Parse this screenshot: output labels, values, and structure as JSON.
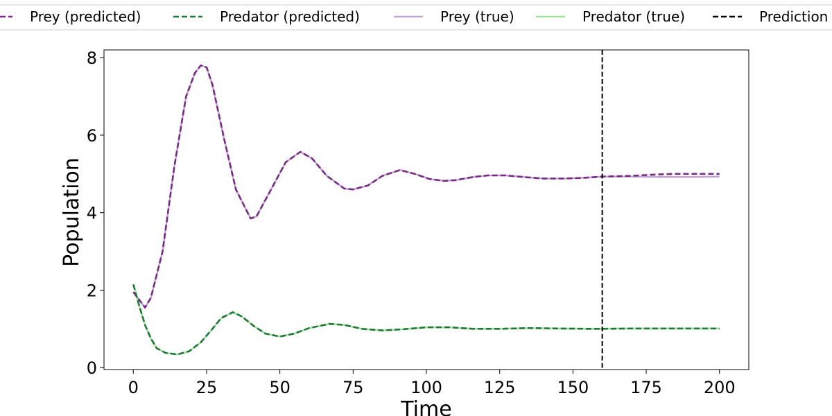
{
  "chart_data": {
    "type": "line",
    "xlabel": "Time",
    "ylabel": "Population",
    "xlim": [
      -10,
      210
    ],
    "ylim": [
      -0.05,
      8.2
    ],
    "xticks": [
      0,
      25,
      50,
      75,
      100,
      125,
      150,
      175,
      200
    ],
    "yticks": [
      0,
      2,
      4,
      6,
      8
    ],
    "grid": false,
    "legend": {
      "placement": "top",
      "entries": [
        {
          "label": "Prey (predicted)",
          "color": "#762a83",
          "style": "dashed"
        },
        {
          "label": "Predator (predicted)",
          "color": "#1b7837",
          "style": "dashed"
        },
        {
          "label": "Prey (true)",
          "color": "#c2a5cf",
          "style": "solid"
        },
        {
          "label": "Predator (true)",
          "color": "#a6dba0",
          "style": "solid"
        },
        {
          "label": "Prediction start",
          "color": "#000000",
          "style": "dashed"
        }
      ]
    },
    "prediction_start": 160,
    "series": [
      {
        "name": "Prey (true)",
        "color": "#c2a5cf",
        "style": "solid",
        "x": [
          0,
          4,
          6,
          10,
          14,
          18,
          21,
          23,
          25,
          27,
          31,
          35,
          40,
          42,
          47,
          52,
          57,
          61,
          66,
          72,
          75,
          80,
          85,
          91,
          96,
          101,
          106,
          110,
          116,
          121,
          127,
          133,
          140,
          147,
          154,
          160,
          170,
          180,
          190,
          200
        ],
        "y": [
          1.95,
          1.55,
          1.8,
          3.0,
          5.2,
          7.0,
          7.6,
          7.8,
          7.75,
          7.3,
          5.9,
          4.6,
          3.85,
          3.9,
          4.6,
          5.3,
          5.57,
          5.4,
          4.95,
          4.62,
          4.6,
          4.7,
          4.95,
          5.1,
          5.0,
          4.87,
          4.82,
          4.84,
          4.92,
          4.96,
          4.96,
          4.92,
          4.88,
          4.88,
          4.9,
          4.93,
          4.93,
          4.92,
          4.92,
          4.93
        ]
      },
      {
        "name": "Predator (true)",
        "color": "#a6dba0",
        "style": "solid",
        "x": [
          0,
          2,
          4,
          6,
          8,
          11,
          15,
          19,
          23,
          27,
          30,
          34,
          37,
          41,
          45,
          50,
          55,
          60,
          67,
          72,
          78,
          85,
          92,
          100,
          108,
          116,
          125,
          135,
          145,
          155,
          160,
          170,
          180,
          190,
          200
        ],
        "y": [
          2.15,
          1.6,
          1.1,
          0.75,
          0.5,
          0.38,
          0.34,
          0.42,
          0.65,
          1.0,
          1.28,
          1.43,
          1.32,
          1.08,
          0.88,
          0.8,
          0.88,
          1.02,
          1.13,
          1.1,
          1.0,
          0.96,
          0.99,
          1.04,
          1.04,
          1.0,
          1.0,
          1.02,
          1.01,
          1.0,
          1.0,
          1.01,
          1.01,
          1.01,
          1.01
        ]
      },
      {
        "name": "Prey (predicted)",
        "color": "#762a83",
        "style": "dashed",
        "x": [
          0,
          4,
          6,
          10,
          14,
          18,
          21,
          23,
          25,
          27,
          31,
          35,
          40,
          42,
          47,
          52,
          57,
          61,
          66,
          72,
          75,
          80,
          85,
          91,
          96,
          101,
          106,
          110,
          116,
          121,
          127,
          133,
          140,
          147,
          154,
          160,
          165,
          170,
          175,
          180,
          185,
          190,
          195,
          200
        ],
        "y": [
          1.95,
          1.55,
          1.8,
          3.0,
          5.2,
          7.0,
          7.6,
          7.8,
          7.75,
          7.3,
          5.9,
          4.6,
          3.85,
          3.9,
          4.6,
          5.3,
          5.57,
          5.4,
          4.95,
          4.62,
          4.6,
          4.7,
          4.95,
          5.1,
          5.0,
          4.87,
          4.82,
          4.84,
          4.92,
          4.96,
          4.96,
          4.92,
          4.88,
          4.88,
          4.9,
          4.93,
          4.94,
          4.95,
          4.97,
          4.99,
          5.0,
          5.0,
          5.0,
          5.0
        ]
      },
      {
        "name": "Predator (predicted)",
        "color": "#1b7837",
        "style": "dashed",
        "x": [
          0,
          2,
          4,
          6,
          8,
          11,
          15,
          19,
          23,
          27,
          30,
          34,
          37,
          41,
          45,
          50,
          55,
          60,
          67,
          72,
          78,
          85,
          92,
          100,
          108,
          116,
          125,
          135,
          145,
          155,
          160,
          170,
          180,
          190,
          200
        ],
        "y": [
          2.15,
          1.6,
          1.1,
          0.75,
          0.5,
          0.38,
          0.34,
          0.42,
          0.65,
          1.0,
          1.28,
          1.43,
          1.32,
          1.08,
          0.88,
          0.8,
          0.88,
          1.02,
          1.13,
          1.1,
          1.0,
          0.96,
          0.99,
          1.04,
          1.04,
          1.0,
          1.0,
          1.02,
          1.01,
          1.0,
          1.0,
          1.01,
          1.01,
          1.01,
          1.01
        ]
      }
    ]
  }
}
